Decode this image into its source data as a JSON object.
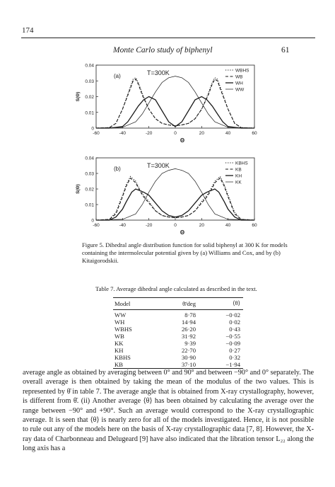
{
  "page": {
    "number": "174",
    "running_head": "Monte Carlo study of biphenyl",
    "journal_page": "61"
  },
  "figure": {
    "caption": "Figure 5. Dihedral angle distribution function for solid biphenyl at 300 K for models containing the intermolecular potential given by (a) Williams and Cox, and by (b) Kitaigorodskii.",
    "panels": [
      {
        "tag": "(a)",
        "temperature": "T=300K",
        "ylabel": "S(Θ)",
        "xlabel": "Θ",
        "legend": [
          "WBHS",
          "WB",
          "WH",
          "WW"
        ]
      },
      {
        "tag": "(b)",
        "temperature": "T=300K",
        "ylabel": "S(Θ)",
        "xlabel": "Θ",
        "legend": [
          "KBHS",
          "KB",
          "KH",
          "KK"
        ]
      }
    ],
    "x_ticks": [
      "-60",
      "-40",
      "-20",
      "0",
      "20",
      "40",
      "60"
    ],
    "y_ticks": [
      "0.04",
      "0.03",
      "0.02",
      "0.01",
      "0"
    ]
  },
  "chart_data": [
    {
      "type": "line",
      "title": "",
      "annotation": "T=300K",
      "panel": "(a)",
      "xlabel": "Θ",
      "ylabel": "S(Θ)",
      "xlim": [
        -60,
        60
      ],
      "ylim": [
        0,
        0.04
      ],
      "xticks": [
        -60,
        -40,
        -20,
        0,
        20,
        40,
        60
      ],
      "yticks": [
        0,
        0.01,
        0.02,
        0.03,
        0.04
      ],
      "legend_position": "top-right",
      "series": [
        {
          "name": "WBHS",
          "style": "dotted",
          "x": [
            -60,
            -50,
            -45,
            -40,
            -35,
            -32,
            -30,
            -28,
            -25,
            -20,
            -15,
            -10,
            -5,
            0,
            5,
            10,
            15,
            20,
            25,
            28,
            30,
            32,
            35,
            40,
            45,
            50,
            60
          ],
          "y": [
            0,
            0.0003,
            0.003,
            0.012,
            0.024,
            0.031,
            0.032,
            0.029,
            0.022,
            0.012,
            0.006,
            0.003,
            0.002,
            0.0015,
            0.002,
            0.003,
            0.006,
            0.012,
            0.022,
            0.029,
            0.032,
            0.031,
            0.024,
            0.012,
            0.003,
            0.0003,
            0
          ]
        },
        {
          "name": "WB",
          "style": "dashed",
          "x": [
            -60,
            -50,
            -45,
            -40,
            -35,
            -32,
            -30,
            -28,
            -25,
            -20,
            -15,
            -10,
            -5,
            0,
            5,
            10,
            15,
            20,
            25,
            28,
            30,
            32,
            35,
            40,
            45,
            50,
            60
          ],
          "y": [
            0,
            0.0003,
            0.003,
            0.012,
            0.023,
            0.03,
            0.031,
            0.028,
            0.021,
            0.012,
            0.006,
            0.003,
            0.002,
            0.0015,
            0.002,
            0.003,
            0.006,
            0.012,
            0.021,
            0.028,
            0.031,
            0.03,
            0.023,
            0.012,
            0.003,
            0.0003,
            0
          ]
        },
        {
          "name": "WH",
          "style": "solid",
          "x": [
            -60,
            -50,
            -40,
            -36,
            -32,
            -28,
            -24,
            -20,
            -15,
            -10,
            -5,
            0,
            5,
            10,
            15,
            20,
            24,
            28,
            32,
            36,
            40,
            50,
            60
          ],
          "y": [
            0,
            0,
            0.001,
            0.004,
            0.009,
            0.014,
            0.018,
            0.02,
            0.018,
            0.011,
            0.004,
            0.001,
            0.004,
            0.011,
            0.018,
            0.02,
            0.018,
            0.014,
            0.009,
            0.004,
            0.001,
            0,
            0
          ]
        },
        {
          "name": "WW",
          "style": "thin",
          "x": [
            -60,
            -40,
            -30,
            -25,
            -20,
            -15,
            -10,
            -5,
            0,
            5,
            10,
            15,
            20,
            25,
            30,
            40,
            60
          ],
          "y": [
            0,
            0.0005,
            0.004,
            0.009,
            0.016,
            0.023,
            0.029,
            0.032,
            0.033,
            0.032,
            0.029,
            0.023,
            0.016,
            0.009,
            0.004,
            0.0005,
            0
          ]
        }
      ]
    },
    {
      "type": "line",
      "title": "",
      "annotation": "T=300K",
      "panel": "(b)",
      "xlabel": "Θ",
      "ylabel": "S(Θ)",
      "xlim": [
        -60,
        60
      ],
      "ylim": [
        0,
        0.04
      ],
      "xticks": [
        -60,
        -40,
        -20,
        0,
        20,
        40,
        60
      ],
      "yticks": [
        0,
        0.01,
        0.02,
        0.03,
        0.04
      ],
      "legend_position": "top-right",
      "series": [
        {
          "name": "KBHS",
          "style": "dotted",
          "x": [
            -60,
            -50,
            -45,
            -40,
            -37,
            -34,
            -30,
            -27,
            -24,
            -20,
            -15,
            -10,
            -5,
            0,
            5,
            10,
            15,
            20,
            24,
            27,
            30,
            34,
            37,
            40,
            45,
            50,
            60
          ],
          "y": [
            0,
            0.0005,
            0.005,
            0.016,
            0.023,
            0.028,
            0.025,
            0.02,
            0.016,
            0.012,
            0.006,
            0.003,
            0.002,
            0.0015,
            0.002,
            0.003,
            0.006,
            0.012,
            0.016,
            0.02,
            0.025,
            0.028,
            0.023,
            0.016,
            0.005,
            0.0005,
            0
          ]
        },
        {
          "name": "KB",
          "style": "dashed",
          "x": [
            -60,
            -50,
            -45,
            -40,
            -37,
            -34,
            -30,
            -27,
            -24,
            -20,
            -15,
            -10,
            -5,
            0,
            5,
            10,
            15,
            20,
            24,
            27,
            30,
            34,
            37,
            40,
            45,
            50,
            60
          ],
          "y": [
            0,
            0.0005,
            0.004,
            0.015,
            0.022,
            0.027,
            0.024,
            0.019,
            0.015,
            0.011,
            0.006,
            0.003,
            0.002,
            0.0015,
            0.002,
            0.003,
            0.006,
            0.011,
            0.015,
            0.019,
            0.024,
            0.027,
            0.022,
            0.015,
            0.004,
            0.0005,
            0
          ]
        },
        {
          "name": "KH",
          "style": "solid",
          "x": [
            -60,
            -50,
            -45,
            -40,
            -37,
            -33,
            -30,
            -27,
            -24,
            -20,
            -15,
            -10,
            -5,
            0,
            5,
            10,
            15,
            20,
            24,
            27,
            30,
            33,
            37,
            40,
            45,
            50,
            60
          ],
          "y": [
            0,
            0,
            0.002,
            0.007,
            0.012,
            0.018,
            0.02,
            0.019,
            0.018,
            0.016,
            0.011,
            0.006,
            0.003,
            0.002,
            0.003,
            0.006,
            0.011,
            0.016,
            0.018,
            0.019,
            0.02,
            0.018,
            0.012,
            0.007,
            0.002,
            0,
            0
          ]
        },
        {
          "name": "KK",
          "style": "thin",
          "x": [
            -60,
            -40,
            -30,
            -25,
            -20,
            -15,
            -10,
            -5,
            0,
            5,
            10,
            15,
            20,
            25,
            30,
            40,
            60
          ],
          "y": [
            0,
            0.0005,
            0.004,
            0.01,
            0.018,
            0.025,
            0.03,
            0.032,
            0.033,
            0.032,
            0.03,
            0.025,
            0.018,
            0.01,
            0.004,
            0.0005,
            0
          ]
        }
      ]
    }
  ],
  "table": {
    "title": "Table 7. Average dihedral angle calculated as described in the text.",
    "headers": [
      "Model",
      "θ̄/deg",
      "⟨θ⟩"
    ],
    "rows": [
      [
        "WW",
        "8·78",
        "−0·02"
      ],
      [
        "WH",
        "14·94",
        "0·02"
      ],
      [
        "WBHS",
        "26·20",
        "0·43"
      ],
      [
        "WB",
        "31·92",
        "−0·55"
      ],
      [
        "KK",
        "9·39",
        "−0·09"
      ],
      [
        "KH",
        "22·70",
        "0·27"
      ],
      [
        "KBHS",
        "30·90",
        "0·32"
      ],
      [
        "KB",
        "37·10",
        "−1·94"
      ]
    ]
  },
  "body_text": "average angle as obtained by averaging between 0° and 90° and between −90° and 0° separately. The overall average is then obtained by taking the mean of the modulus of the two values. This is represented by θ̄ in table 7. The average angle that is obtained from X-ray crystallography, however, is different from θ̄. (ii) Another average ⟨θ⟩ has been obtained by calculating the average over the range between −90° and +90°. Such an average would correspond to the X-ray crystallographic average. It is seen that ⟨θ⟩ is nearly zero for all of the models investigated. Hence, it is not possible to rule out any of the models here on the basis of X-ray crystallographic data [7, 8]. However, the X-ray data of Charbonneau and Delugeard [9] have also indicated that the libration tensor L₂₂ along the long axis has a"
}
